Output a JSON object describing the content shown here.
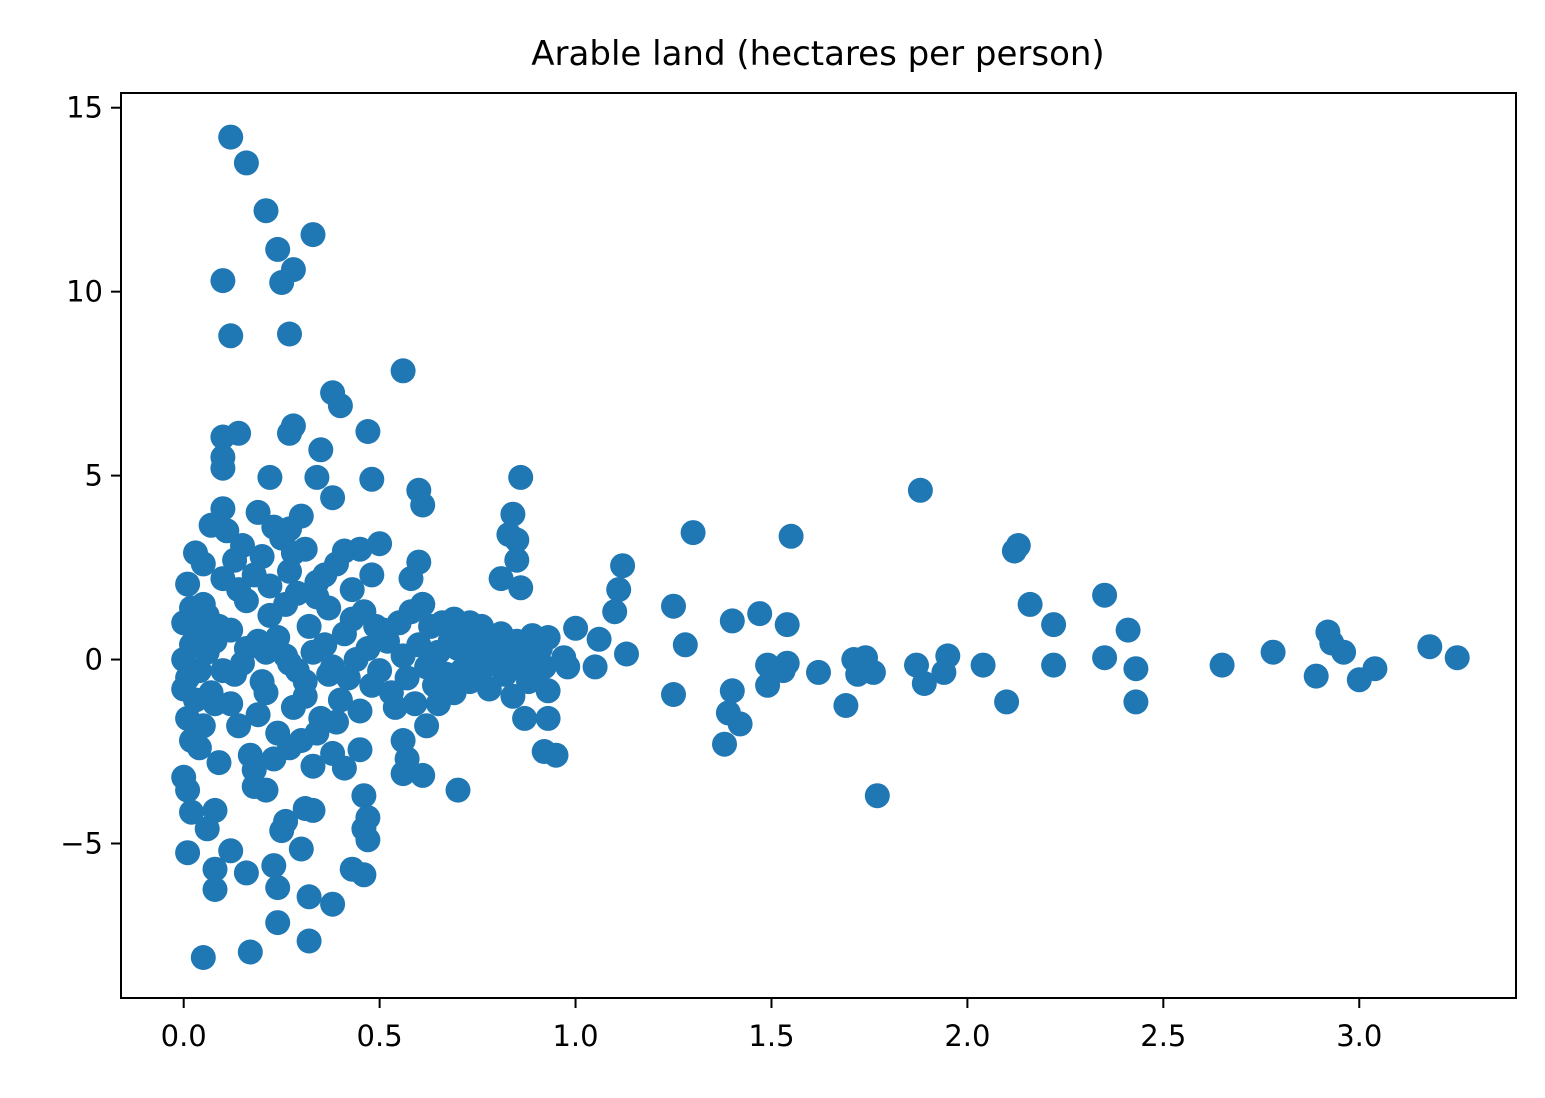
{
  "chart_data": {
    "type": "scatter",
    "title": "Arable land (hectares per person)",
    "xlabel": "",
    "ylabel": "",
    "xlim": [
      -0.16,
      3.4
    ],
    "ylim": [
      -9.2,
      15.4
    ],
    "x_ticks": [
      0.0,
      0.5,
      1.0,
      1.5,
      2.0,
      2.5,
      3.0
    ],
    "x_tick_labels": [
      "0.0",
      "0.5",
      "1.0",
      "1.5",
      "2.0",
      "2.5",
      "3.0"
    ],
    "y_ticks": [
      -5,
      0,
      5,
      10,
      15
    ],
    "y_tick_labels": [
      "−5",
      "0",
      "5",
      "10",
      "15"
    ],
    "grid": false,
    "legend": "none",
    "series": [
      {
        "color": "#1f77b4",
        "points": [
          [
            0.12,
            14.2
          ],
          [
            0.16,
            13.5
          ],
          [
            0.21,
            12.2
          ],
          [
            0.33,
            11.55
          ],
          [
            0.24,
            11.15
          ],
          [
            0.28,
            10.6
          ],
          [
            0.25,
            10.25
          ],
          [
            0.1,
            10.3
          ],
          [
            0.12,
            8.8
          ],
          [
            0.27,
            8.85
          ],
          [
            0.56,
            7.85
          ],
          [
            0.38,
            7.25
          ],
          [
            0.4,
            6.9
          ],
          [
            0.28,
            6.35
          ],
          [
            0.47,
            6.2
          ],
          [
            0.14,
            6.15
          ],
          [
            0.1,
            6.05
          ],
          [
            0.27,
            6.15
          ],
          [
            0.35,
            5.7
          ],
          [
            0.1,
            5.5
          ],
          [
            0.1,
            5.2
          ],
          [
            0.22,
            4.95
          ],
          [
            0.34,
            4.95
          ],
          [
            0.48,
            4.9
          ],
          [
            0.86,
            4.95
          ],
          [
            0.6,
            4.6
          ],
          [
            0.61,
            4.2
          ],
          [
            0.38,
            4.4
          ],
          [
            0.1,
            4.1
          ],
          [
            0.19,
            4.0
          ],
          [
            0.07,
            3.65
          ],
          [
            0.27,
            3.55
          ],
          [
            0.84,
            3.95
          ],
          [
            0.83,
            3.4
          ],
          [
            0.85,
            3.25
          ],
          [
            0.5,
            3.15
          ],
          [
            0.45,
            3.0
          ],
          [
            0.41,
            2.95
          ],
          [
            0.03,
            2.9
          ],
          [
            0.6,
            2.65
          ],
          [
            0.85,
            2.7
          ],
          [
            0.48,
            2.3
          ],
          [
            0.58,
            2.2
          ],
          [
            0.81,
            2.2
          ],
          [
            0.86,
            1.95
          ],
          [
            0.01,
            2.05
          ],
          [
            0.61,
            1.5
          ],
          [
            0.73,
            1.0
          ],
          [
            1.12,
            2.55
          ],
          [
            1.11,
            1.9
          ],
          [
            1.3,
            3.45
          ],
          [
            1.55,
            3.35
          ],
          [
            1.25,
            1.45
          ],
          [
            1.1,
            1.3
          ],
          [
            1.47,
            1.25
          ],
          [
            1.4,
            1.05
          ],
          [
            1.54,
            0.95
          ],
          [
            1.0,
            0.85
          ],
          [
            1.06,
            0.55
          ],
          [
            0.89,
            0.65
          ],
          [
            0.93,
            0.6
          ],
          [
            1.28,
            0.4
          ],
          [
            1.13,
            0.15
          ],
          [
            0.97,
            0.05
          ],
          [
            0.98,
            -0.2
          ],
          [
            1.05,
            -0.2
          ],
          [
            1.25,
            -0.95
          ],
          [
            1.4,
            -0.85
          ],
          [
            1.39,
            -1.45
          ],
          [
            1.42,
            -1.75
          ],
          [
            1.38,
            -2.3
          ],
          [
            1.49,
            -0.7
          ],
          [
            1.49,
            -0.15
          ],
          [
            1.54,
            -0.1
          ],
          [
            1.53,
            -0.3
          ],
          [
            1.62,
            -0.35
          ],
          [
            1.69,
            -1.25
          ],
          [
            1.71,
            0.0
          ],
          [
            1.72,
            -0.4
          ],
          [
            1.74,
            0.05
          ],
          [
            1.76,
            -0.35
          ],
          [
            1.77,
            -3.7
          ],
          [
            1.87,
            -0.15
          ],
          [
            1.89,
            -0.65
          ],
          [
            1.88,
            4.6
          ],
          [
            1.95,
            0.1
          ],
          [
            1.94,
            -0.35
          ],
          [
            2.04,
            -0.15
          ],
          [
            2.1,
            -1.15
          ],
          [
            2.12,
            2.95
          ],
          [
            2.13,
            3.1
          ],
          [
            2.16,
            1.5
          ],
          [
            2.22,
            0.95
          ],
          [
            2.22,
            -0.15
          ],
          [
            2.35,
            1.75
          ],
          [
            2.35,
            0.05
          ],
          [
            2.41,
            0.8
          ],
          [
            2.43,
            -0.25
          ],
          [
            2.43,
            -1.15
          ],
          [
            2.65,
            -0.15
          ],
          [
            2.78,
            0.2
          ],
          [
            2.89,
            -0.45
          ],
          [
            2.92,
            0.75
          ],
          [
            2.93,
            0.45
          ],
          [
            2.96,
            0.2
          ],
          [
            3.0,
            -0.55
          ],
          [
            3.04,
            -0.25
          ],
          [
            3.18,
            0.35
          ],
          [
            3.25,
            0.05
          ],
          [
            0.95,
            -2.6
          ],
          [
            0.92,
            -2.5
          ],
          [
            0.93,
            -1.6
          ],
          [
            0.87,
            -1.6
          ],
          [
            0.93,
            -0.85
          ],
          [
            0.7,
            -3.55
          ],
          [
            0.61,
            -3.15
          ],
          [
            0.56,
            -3.1
          ],
          [
            0.57,
            -2.7
          ],
          [
            0.56,
            -2.2
          ],
          [
            0.62,
            -1.8
          ],
          [
            0.41,
            -2.95
          ],
          [
            0.38,
            -2.55
          ],
          [
            0.45,
            -2.45
          ],
          [
            0.46,
            -3.7
          ],
          [
            0.47,
            -4.3
          ],
          [
            0.46,
            -4.6
          ],
          [
            0.47,
            -4.9
          ],
          [
            0.33,
            -4.1
          ],
          [
            0.31,
            -4.05
          ],
          [
            0.26,
            -4.4
          ],
          [
            0.25,
            -4.65
          ],
          [
            0.3,
            -5.15
          ],
          [
            0.23,
            -5.6
          ],
          [
            0.43,
            -5.7
          ],
          [
            0.46,
            -5.85
          ],
          [
            0.24,
            -6.2
          ],
          [
            0.32,
            -6.45
          ],
          [
            0.38,
            -6.65
          ],
          [
            0.24,
            -7.15
          ],
          [
            0.32,
            -7.65
          ],
          [
            0.17,
            -7.95
          ],
          [
            0.05,
            -8.1
          ],
          [
            0.16,
            -5.8
          ],
          [
            0.12,
            -5.2
          ],
          [
            0.08,
            -5.7
          ],
          [
            0.08,
            -6.25
          ],
          [
            0.01,
            -5.25
          ],
          [
            0.06,
            -4.6
          ],
          [
            0.08,
            -4.1
          ],
          [
            0.02,
            -4.15
          ],
          [
            0.01,
            -3.55
          ],
          [
            0.0,
            -3.2
          ],
          [
            0.21,
            -3.55
          ],
          [
            0.18,
            -3.45
          ],
          [
            0.02,
            -2.2
          ],
          [
            0.01,
            -1.6
          ],
          [
            0.0,
            1.0
          ],
          [
            0.02,
            0.4
          ],
          [
            0.04,
            -0.3
          ],
          [
            0.0,
            -0.8
          ],
          [
            0.05,
            1.5
          ],
          [
            0.06,
            0.2
          ],
          [
            0.08,
            -1.2
          ],
          [
            0.1,
            2.2
          ],
          [
            0.12,
            0.8
          ],
          [
            0.13,
            -0.4
          ],
          [
            0.15,
            3.1
          ],
          [
            0.14,
            -1.8
          ],
          [
            0.16,
            1.6
          ],
          [
            0.17,
            -2.6
          ],
          [
            0.19,
            0.5
          ],
          [
            0.2,
            2.8
          ],
          [
            0.21,
            -0.9
          ],
          [
            0.22,
            1.2
          ],
          [
            0.23,
            3.6
          ],
          [
            0.24,
            -2.0
          ],
          [
            0.26,
            0.1
          ],
          [
            0.27,
            2.4
          ],
          [
            0.28,
            -1.3
          ],
          [
            0.29,
            1.8
          ],
          [
            0.3,
            3.9
          ],
          [
            0.31,
            -0.6
          ],
          [
            0.32,
            0.9
          ],
          [
            0.33,
            -2.9
          ],
          [
            0.34,
            2.1
          ],
          [
            0.35,
            -1.6
          ],
          [
            0.36,
            0.4
          ],
          [
            0.37,
            1.4
          ],
          [
            0.38,
            -0.2
          ],
          [
            0.39,
            2.6
          ],
          [
            0.4,
            -1.1
          ],
          [
            0.41,
            0.7
          ],
          [
            0.42,
            -0.5
          ],
          [
            0.43,
            1.1
          ],
          [
            0.44,
            0.0
          ],
          [
            0.45,
            -1.4
          ],
          [
            0.46,
            1.3
          ],
          [
            0.47,
            0.3
          ],
          [
            0.48,
            -0.7
          ],
          [
            0.49,
            0.9
          ],
          [
            0.5,
            -0.3
          ],
          [
            0.52,
            0.5
          ],
          [
            0.53,
            -0.9
          ],
          [
            0.55,
            1.0
          ],
          [
            0.56,
            0.1
          ],
          [
            0.57,
            -0.5
          ],
          [
            0.58,
            1.3
          ],
          [
            0.59,
            -1.2
          ],
          [
            0.6,
            0.4
          ],
          [
            0.62,
            -0.2
          ],
          [
            0.63,
            0.9
          ],
          [
            0.64,
            -0.7
          ],
          [
            0.65,
            0.2
          ],
          [
            0.66,
            1.0
          ],
          [
            0.67,
            -0.4
          ],
          [
            0.68,
            0.5
          ],
          [
            0.69,
            -0.9
          ],
          [
            0.7,
            0.3
          ],
          [
            0.71,
            -0.3
          ],
          [
            0.72,
            0.7
          ],
          [
            0.73,
            -0.6
          ],
          [
            0.74,
            0.1
          ],
          [
            0.75,
            0.5
          ],
          [
            0.76,
            -0.3
          ],
          [
            0.77,
            0.2
          ],
          [
            0.78,
            -0.8
          ],
          [
            0.79,
            0.6
          ],
          [
            0.8,
            0.0
          ],
          [
            0.81,
            0.7
          ],
          [
            0.82,
            -0.4
          ],
          [
            0.83,
            0.3
          ],
          [
            0.84,
            -1.0
          ],
          [
            0.85,
            0.5
          ],
          [
            0.86,
            -0.2
          ],
          [
            0.87,
            0.4
          ],
          [
            0.88,
            -0.6
          ],
          [
            0.89,
            0.1
          ],
          [
            0.9,
            -0.3
          ],
          [
            0.91,
            0.3
          ],
          [
            0.92,
            -0.2
          ],
          [
            0.05,
            2.6
          ],
          [
            0.09,
            -2.8
          ],
          [
            0.11,
            3.5
          ],
          [
            0.18,
            -3.0
          ],
          [
            0.25,
            3.3
          ],
          [
            0.27,
            -2.4
          ],
          [
            0.31,
            3.0
          ],
          [
            0.34,
            -2.0
          ],
          [
            0.22,
            2.0
          ],
          [
            0.19,
            -1.5
          ],
          [
            0.14,
            1.9
          ],
          [
            0.07,
            -0.9
          ],
          [
            0.03,
            0.7
          ],
          [
            0.29,
            -0.3
          ],
          [
            0.26,
            1.5
          ],
          [
            0.2,
            -0.6
          ],
          [
            0.16,
            0.3
          ],
          [
            0.12,
            -1.2
          ],
          [
            0.09,
            0.9
          ],
          [
            0.34,
            1.7
          ],
          [
            0.31,
            -1.0
          ],
          [
            0.24,
            0.6
          ],
          [
            0.18,
            2.3
          ],
          [
            0.13,
            2.7
          ],
          [
            0.28,
            2.9
          ],
          [
            0.23,
            -2.7
          ],
          [
            0.3,
            -2.2
          ],
          [
            0.36,
            2.3
          ],
          [
            0.39,
            -1.7
          ],
          [
            0.43,
            1.9
          ],
          [
            0.05,
            -1.8
          ],
          [
            0.06,
            1.2
          ],
          [
            0.04,
            -2.4
          ],
          [
            0.1,
            -0.3
          ],
          [
            0.08,
            0.5
          ],
          [
            0.15,
            -0.1
          ],
          [
            0.21,
            0.2
          ],
          [
            0.27,
            -0.1
          ],
          [
            0.33,
            0.2
          ],
          [
            0.37,
            -0.4
          ],
          [
            0.51,
            0.8
          ],
          [
            0.54,
            -1.3
          ],
          [
            0.61,
            1.5
          ],
          [
            0.65,
            -1.2
          ],
          [
            0.69,
            1.1
          ],
          [
            0.76,
            0.9
          ],
          [
            0.0,
            0.0
          ],
          [
            0.01,
            -0.5
          ],
          [
            0.02,
            1.4
          ],
          [
            0.03,
            -1.1
          ],
          [
            0.04,
            0.6
          ]
        ]
      }
    ]
  }
}
